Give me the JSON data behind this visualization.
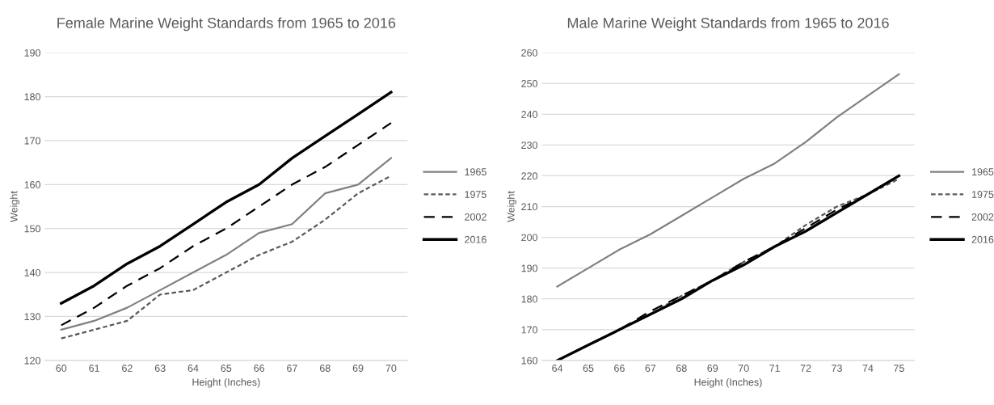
{
  "chart_data": [
    {
      "type": "line",
      "title": "Female Marine Weight Standards from 1965 to 2016",
      "xlabel": "Height (Inches)",
      "ylabel": "Weight",
      "categories": [
        "60",
        "61",
        "62",
        "63",
        "64",
        "65",
        "66",
        "67",
        "68",
        "69",
        "70"
      ],
      "ylim": [
        120,
        190
      ],
      "yticks": [
        120,
        130,
        140,
        150,
        160,
        170,
        180,
        190
      ],
      "grid": "y",
      "legend": "right",
      "marker": "none",
      "series": [
        {
          "name": "1965",
          "color": "#808080",
          "line_style": "solid",
          "values": [
            127,
            129,
            132,
            136,
            140,
            144,
            149,
            151,
            158,
            160,
            166
          ]
        },
        {
          "name": "1975",
          "color": "#595959",
          "line_style": "dotted",
          "values": [
            125,
            127,
            129,
            135,
            136,
            140,
            144,
            147,
            152,
            158,
            162
          ]
        },
        {
          "name": "2002",
          "color": "#000000",
          "line_style": "dashed",
          "values": [
            128,
            132,
            137,
            141,
            146,
            150,
            155,
            160,
            164,
            169,
            174
          ]
        },
        {
          "name": "2016",
          "color": "#000000",
          "line_style": "solid",
          "values": [
            133,
            137,
            142,
            146,
            151,
            156,
            160,
            166,
            171,
            176,
            181
          ]
        }
      ]
    },
    {
      "type": "line",
      "title": "Male Marine Weight Standards from 1965 to 2016",
      "xlabel": "Height (Inches)",
      "ylabel": "Weight",
      "categories": [
        "64",
        "65",
        "66",
        "67",
        "68",
        "69",
        "70",
        "71",
        "72",
        "73",
        "74",
        "75"
      ],
      "ylim": [
        160,
        260
      ],
      "yticks": [
        160,
        170,
        180,
        190,
        200,
        210,
        220,
        230,
        240,
        250,
        260
      ],
      "grid": "y",
      "legend": "right",
      "marker": "none",
      "series": [
        {
          "name": "1965",
          "color": "#808080",
          "line_style": "solid",
          "values": [
            184,
            190,
            196,
            201,
            207,
            213,
            219,
            224,
            231,
            239,
            246,
            253
          ]
        },
        {
          "name": "1975",
          "color": "#595959",
          "line_style": "dotted",
          "values": [
            160,
            165,
            170,
            175,
            181,
            186,
            192,
            197,
            204,
            210,
            214,
            219
          ]
        },
        {
          "name": "2002",
          "color": "#000000",
          "line_style": "dashed",
          "values": [
            160,
            165,
            170,
            176,
            181,
            186,
            192,
            197,
            203,
            209,
            214,
            220
          ]
        },
        {
          "name": "2016",
          "color": "#000000",
          "line_style": "solid",
          "values": [
            160,
            165,
            170,
            175,
            180,
            186,
            191,
            197,
            202,
            208,
            214,
            220
          ]
        }
      ]
    }
  ]
}
